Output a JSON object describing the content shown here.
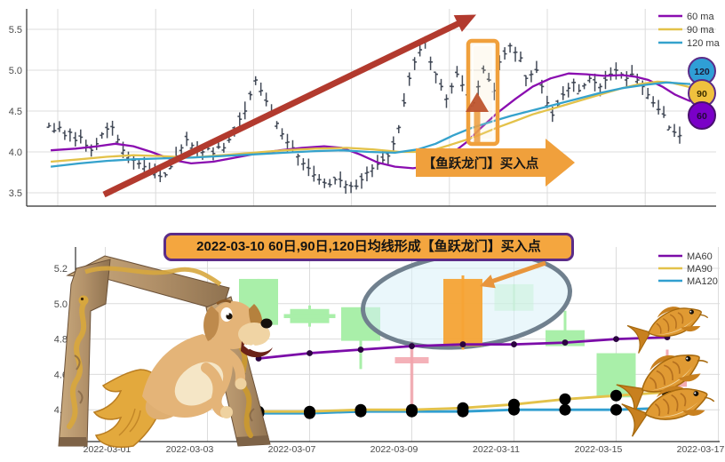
{
  "top_chart": {
    "type": "line",
    "title": "",
    "ylabel": "",
    "y_ticks": [
      5.5,
      5.0,
      4.5,
      4.0,
      3.5
    ],
    "ylim": [
      3.34,
      5.75
    ],
    "bar_color": "#3A4250",
    "grid": true,
    "legend_position": "upper right",
    "closes": [
      4.32,
      4.26,
      4.3,
      4.2,
      4.24,
      4.14,
      4.18,
      4.08,
      4.02,
      4.1,
      4.22,
      4.28,
      4.3,
      4.15,
      4.02,
      3.95,
      3.9,
      3.86,
      3.82,
      3.78,
      3.75,
      3.7,
      3.72,
      3.82,
      3.95,
      4.05,
      4.15,
      4.08,
      4.02,
      4.0,
      4.04,
      3.98,
      4.06,
      4.05,
      4.15,
      4.28,
      4.4,
      4.5,
      4.7,
      4.88,
      4.75,
      4.62,
      4.5,
      4.35,
      4.22,
      4.12,
      4.05,
      3.95,
      3.86,
      3.8,
      3.72,
      3.66,
      3.62,
      3.6,
      3.66,
      3.65,
      3.6,
      3.58,
      3.58,
      3.66,
      3.75,
      3.8,
      3.85,
      3.9,
      3.95,
      4.1,
      4.3,
      4.6,
      4.9,
      5.1,
      5.25,
      5.35,
      5.1,
      4.95,
      4.8,
      4.65,
      4.8,
      4.95,
      4.82,
      4.7,
      4.6,
      4.8,
      5.0,
      4.88,
      4.75,
      5.1,
      5.2,
      5.3,
      5.22,
      5.15,
      4.9,
      4.95,
      5.0,
      4.8,
      4.6,
      4.45,
      4.58,
      4.7,
      4.78,
      4.85,
      4.75,
      4.82,
      4.9,
      4.85,
      4.8,
      4.88,
      4.95,
      5.0,
      4.95,
      4.9,
      4.95,
      4.88,
      4.8,
      4.7,
      4.6,
      4.52,
      4.45,
      4.3,
      4.24,
      4.2
    ],
    "series": [
      {
        "name": "60 ma",
        "color": "#8A0DB0",
        "points": [
          [
            0.035,
            4.02
          ],
          [
            0.071,
            4.04
          ],
          [
            0.103,
            4.07
          ],
          [
            0.129,
            4.1
          ],
          [
            0.155,
            4.07
          ],
          [
            0.181,
            4.0
          ],
          [
            0.213,
            3.9
          ],
          [
            0.239,
            3.86
          ],
          [
            0.271,
            3.88
          ],
          [
            0.303,
            3.93
          ],
          [
            0.335,
            3.98
          ],
          [
            0.368,
            4.02
          ],
          [
            0.4,
            4.05
          ],
          [
            0.432,
            4.07
          ],
          [
            0.458,
            4.05
          ],
          [
            0.484,
            3.97
          ],
          [
            0.51,
            3.87
          ],
          [
            0.535,
            3.82
          ],
          [
            0.561,
            3.8
          ],
          [
            0.587,
            3.83
          ],
          [
            0.613,
            3.95
          ],
          [
            0.639,
            4.12
          ],
          [
            0.658,
            4.28
          ],
          [
            0.684,
            4.48
          ],
          [
            0.71,
            4.65
          ],
          [
            0.735,
            4.8
          ],
          [
            0.761,
            4.9
          ],
          [
            0.787,
            4.96
          ],
          [
            0.813,
            4.95
          ],
          [
            0.839,
            4.93
          ],
          [
            0.865,
            4.94
          ],
          [
            0.884,
            4.92
          ],
          [
            0.903,
            4.88
          ],
          [
            0.923,
            4.8
          ],
          [
            0.942,
            4.7
          ],
          [
            0.964,
            4.62
          ]
        ]
      },
      {
        "name": "90 ma",
        "color": "#E3C24A",
        "points": [
          [
            0.035,
            3.88
          ],
          [
            0.077,
            3.91
          ],
          [
            0.116,
            3.94
          ],
          [
            0.155,
            3.96
          ],
          [
            0.194,
            3.95
          ],
          [
            0.239,
            3.93
          ],
          [
            0.284,
            3.96
          ],
          [
            0.329,
            3.99
          ],
          [
            0.374,
            4.02
          ],
          [
            0.419,
            4.04
          ],
          [
            0.465,
            4.05
          ],
          [
            0.503,
            4.03
          ],
          [
            0.542,
            4.0
          ],
          [
            0.581,
            4.0
          ],
          [
            0.613,
            4.08
          ],
          [
            0.639,
            4.15
          ],
          [
            0.658,
            4.21
          ],
          [
            0.684,
            4.3
          ],
          [
            0.71,
            4.38
          ],
          [
            0.735,
            4.46
          ],
          [
            0.768,
            4.54
          ],
          [
            0.8,
            4.62
          ],
          [
            0.832,
            4.7
          ],
          [
            0.865,
            4.78
          ],
          [
            0.89,
            4.83
          ],
          [
            0.916,
            4.86
          ],
          [
            0.935,
            4.85
          ],
          [
            0.964,
            4.79
          ]
        ]
      },
      {
        "name": "120 ma",
        "color": "#35A2CC",
        "points": [
          [
            0.035,
            3.82
          ],
          [
            0.077,
            3.86
          ],
          [
            0.116,
            3.89
          ],
          [
            0.155,
            3.91
          ],
          [
            0.194,
            3.92
          ],
          [
            0.239,
            3.93
          ],
          [
            0.284,
            3.95
          ],
          [
            0.329,
            3.97
          ],
          [
            0.374,
            3.99
          ],
          [
            0.419,
            4.01
          ],
          [
            0.458,
            4.02
          ],
          [
            0.497,
            4.0
          ],
          [
            0.535,
            3.99
          ],
          [
            0.568,
            4.03
          ],
          [
            0.594,
            4.1
          ],
          [
            0.619,
            4.2
          ],
          [
            0.645,
            4.29
          ],
          [
            0.671,
            4.36
          ],
          [
            0.703,
            4.44
          ],
          [
            0.735,
            4.51
          ],
          [
            0.768,
            4.58
          ],
          [
            0.8,
            4.65
          ],
          [
            0.832,
            4.72
          ],
          [
            0.865,
            4.78
          ],
          [
            0.897,
            4.82
          ],
          [
            0.929,
            4.85
          ],
          [
            0.964,
            4.83
          ]
        ]
      }
    ],
    "banner_text": "【鱼跃龙门】买入点",
    "trend_arrow_color": "#B23A2E",
    "highlight_color": "#F0A03C",
    "ma_badges": [
      {
        "label": "120",
        "fill": "#2F9FD6"
      },
      {
        "label": "90",
        "fill": "#EFC13E"
      },
      {
        "label": "60",
        "fill": "#7A00C8"
      }
    ]
  },
  "bottom_chart": {
    "type": "candlestick",
    "title": "2022-03-10 60日,90日,120日均线形成【鱼跃龙门】买入点",
    "y_ticks": [
      5.2,
      5.0,
      4.8,
      4.6,
      4.4
    ],
    "num_days": 13,
    "x_tick_days": [
      0,
      2,
      4,
      6,
      8,
      10,
      12
    ],
    "x_labels": [
      "2022-03-01",
      "2022-03-03",
      "2022-03-07",
      "2022-03-09",
      "2022-03-11",
      "2022-03-15",
      "2022-03-17"
    ],
    "up_color": "#A9EFA9",
    "down_color": "#F2A3AB",
    "signal_color": "#F5A335",
    "candles": [
      {
        "day": 3,
        "color": "#A9EFA9",
        "open": 4.88,
        "close": 5.14,
        "high": 5.14,
        "low": 4.84,
        "alpha": 1,
        "style": "candle"
      },
      {
        "day": 4,
        "color": "#A9EFA9",
        "open": 4.89,
        "close": 4.97,
        "high": 4.99,
        "low": 4.87,
        "alpha": 1,
        "style": "candle",
        "mid": 4.93
      },
      {
        "day": 5,
        "color": "#A9EFA9",
        "open": 4.79,
        "close": 4.98,
        "high": 4.98,
        "low": 4.63,
        "alpha": 1,
        "style": "candle"
      },
      {
        "day": 6,
        "color": "#F2A3AB",
        "open": 4.66,
        "close": 4.7,
        "high": 4.79,
        "low": 4.42,
        "alpha": 0.85,
        "style": "cross",
        "mid": 4.68
      },
      {
        "day": 7,
        "color": "#F5A335",
        "open": 4.76,
        "close": 5.14,
        "high": 5.16,
        "low": 4.74,
        "alpha": 0.95,
        "style": "candle",
        "signal": true
      },
      {
        "day": 8,
        "color": "#A9EFA9",
        "open": 4.96,
        "close": 5.11,
        "high": 5.11,
        "low": 4.96,
        "alpha": 0.45,
        "style": "candle"
      },
      {
        "day": 9,
        "color": "#A9EFA9",
        "open": 4.76,
        "close": 4.85,
        "high": 4.96,
        "low": 4.76,
        "alpha": 1,
        "style": "candle"
      },
      {
        "day": 10,
        "color": "#A9EFA9",
        "open": 4.47,
        "close": 4.72,
        "high": 4.72,
        "low": 4.47,
        "alpha": 1,
        "style": "candle"
      },
      {
        "day": 11,
        "color": "#F2A3AB",
        "open": 4.53,
        "close": 4.59,
        "high": 4.74,
        "low": 4.36,
        "alpha": 0.9,
        "style": "candle"
      }
    ],
    "ma": [
      {
        "name": "MA60",
        "color": "#7B0CA8",
        "marker_color": "#2B0440",
        "marker_r": 3.4,
        "days": [
          3,
          4,
          5,
          6,
          7,
          8,
          9,
          10,
          11
        ],
        "values": [
          4.69,
          4.72,
          4.74,
          4.76,
          4.77,
          4.77,
          4.78,
          4.8,
          4.81
        ]
      },
      {
        "name": "MA90",
        "color": "#E3C24A",
        "marker_color": "#000000",
        "marker_r": 6.5,
        "days": [
          3,
          4,
          5,
          6,
          7,
          8,
          9,
          10,
          11
        ],
        "values": [
          4.39,
          4.39,
          4.4,
          4.4,
          4.41,
          4.43,
          4.46,
          4.48,
          4.5
        ]
      },
      {
        "name": "MA120",
        "color": "#319FD0",
        "marker_color": "#000000",
        "marker_r": 6.5,
        "days": [
          3,
          4,
          5,
          6,
          7,
          8,
          9,
          10,
          11
        ],
        "values": [
          4.38,
          4.38,
          4.39,
          4.39,
          4.39,
          4.4,
          4.4,
          4.4,
          4.41
        ]
      }
    ]
  }
}
